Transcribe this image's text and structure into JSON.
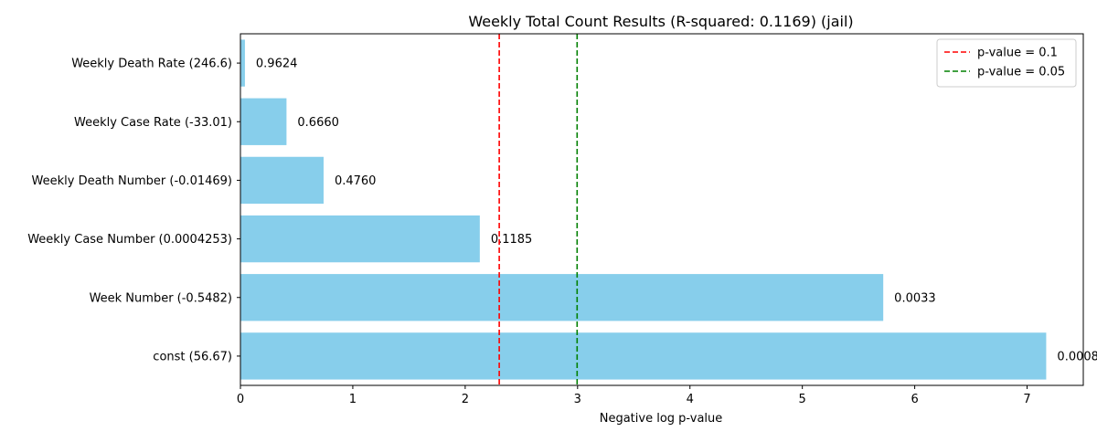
{
  "chart_data": {
    "type": "bar",
    "orientation": "horizontal",
    "title": "Weekly Total Count Results (R-squared: 0.1169) (jail)",
    "xlabel": "Negative log p-value",
    "ylabel": "",
    "xlim": [
      0,
      7.5
    ],
    "xticks": [
      0,
      1,
      2,
      3,
      4,
      5,
      6,
      7
    ],
    "categories": [
      "const (56.67)",
      "Week Number (-0.5482)",
      "Weekly Case Number (0.0004253)",
      "Weekly Death Number (-0.01469)",
      "Weekly Case Rate (-33.01)",
      "Weekly Death Rate (246.6)"
    ],
    "values": [
      7.17,
      5.72,
      2.13,
      0.74,
      0.41,
      0.04
    ],
    "bar_labels": [
      "0.0008",
      "0.0033",
      "0.1185",
      "0.4760",
      "0.6660",
      "0.9624"
    ],
    "bar_color": "#87CEEB",
    "reference_lines": [
      {
        "label": "p-value = 0.1",
        "x": 2.303,
        "color": "#ff0000",
        "style": "dashed"
      },
      {
        "label": "p-value = 0.05",
        "x": 2.996,
        "color": "#008000",
        "style": "dashed"
      }
    ],
    "legend_position": "top-right",
    "grid": false
  }
}
